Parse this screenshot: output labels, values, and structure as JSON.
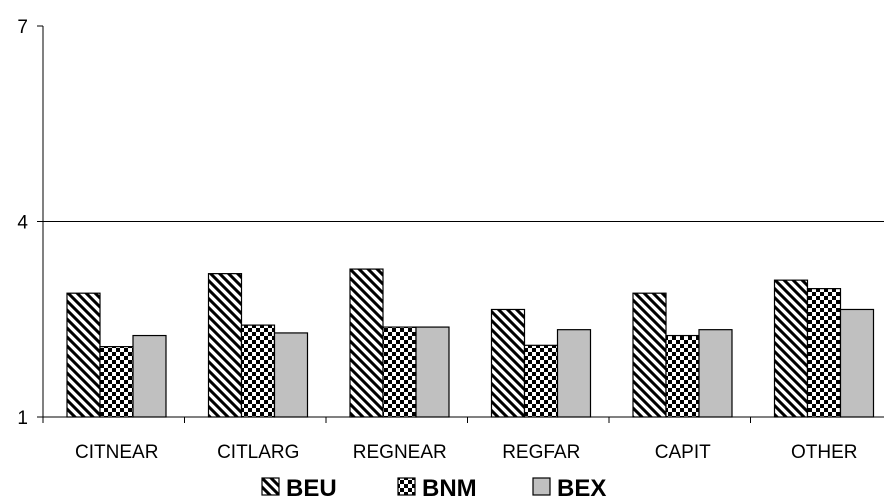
{
  "chart_data": {
    "type": "bar",
    "title": "",
    "xlabel": "",
    "ylabel": "",
    "ylim": [
      1,
      7
    ],
    "yticks": [
      1,
      4,
      7
    ],
    "grid": "horizontal gridline at 4",
    "legend_position": "bottom",
    "categories": [
      "CITNEAR",
      "CITLARG",
      "REGNEAR",
      "REGFAR",
      "CAPIT",
      "OTHER"
    ],
    "series": [
      {
        "name": "BEU",
        "pattern": "diagonal-hatch",
        "color": "#000000",
        "values": [
          2.9,
          3.2,
          3.27,
          2.65,
          2.9,
          3.1
        ]
      },
      {
        "name": "BNM",
        "pattern": "checkerboard",
        "color": "#000000",
        "values": [
          2.08,
          2.41,
          2.38,
          2.1,
          2.25,
          2.97
        ]
      },
      {
        "name": "BEX",
        "pattern": "solid",
        "color": "#c0c0c0",
        "values": [
          2.25,
          2.29,
          2.38,
          2.34,
          2.34,
          2.65
        ]
      }
    ]
  }
}
